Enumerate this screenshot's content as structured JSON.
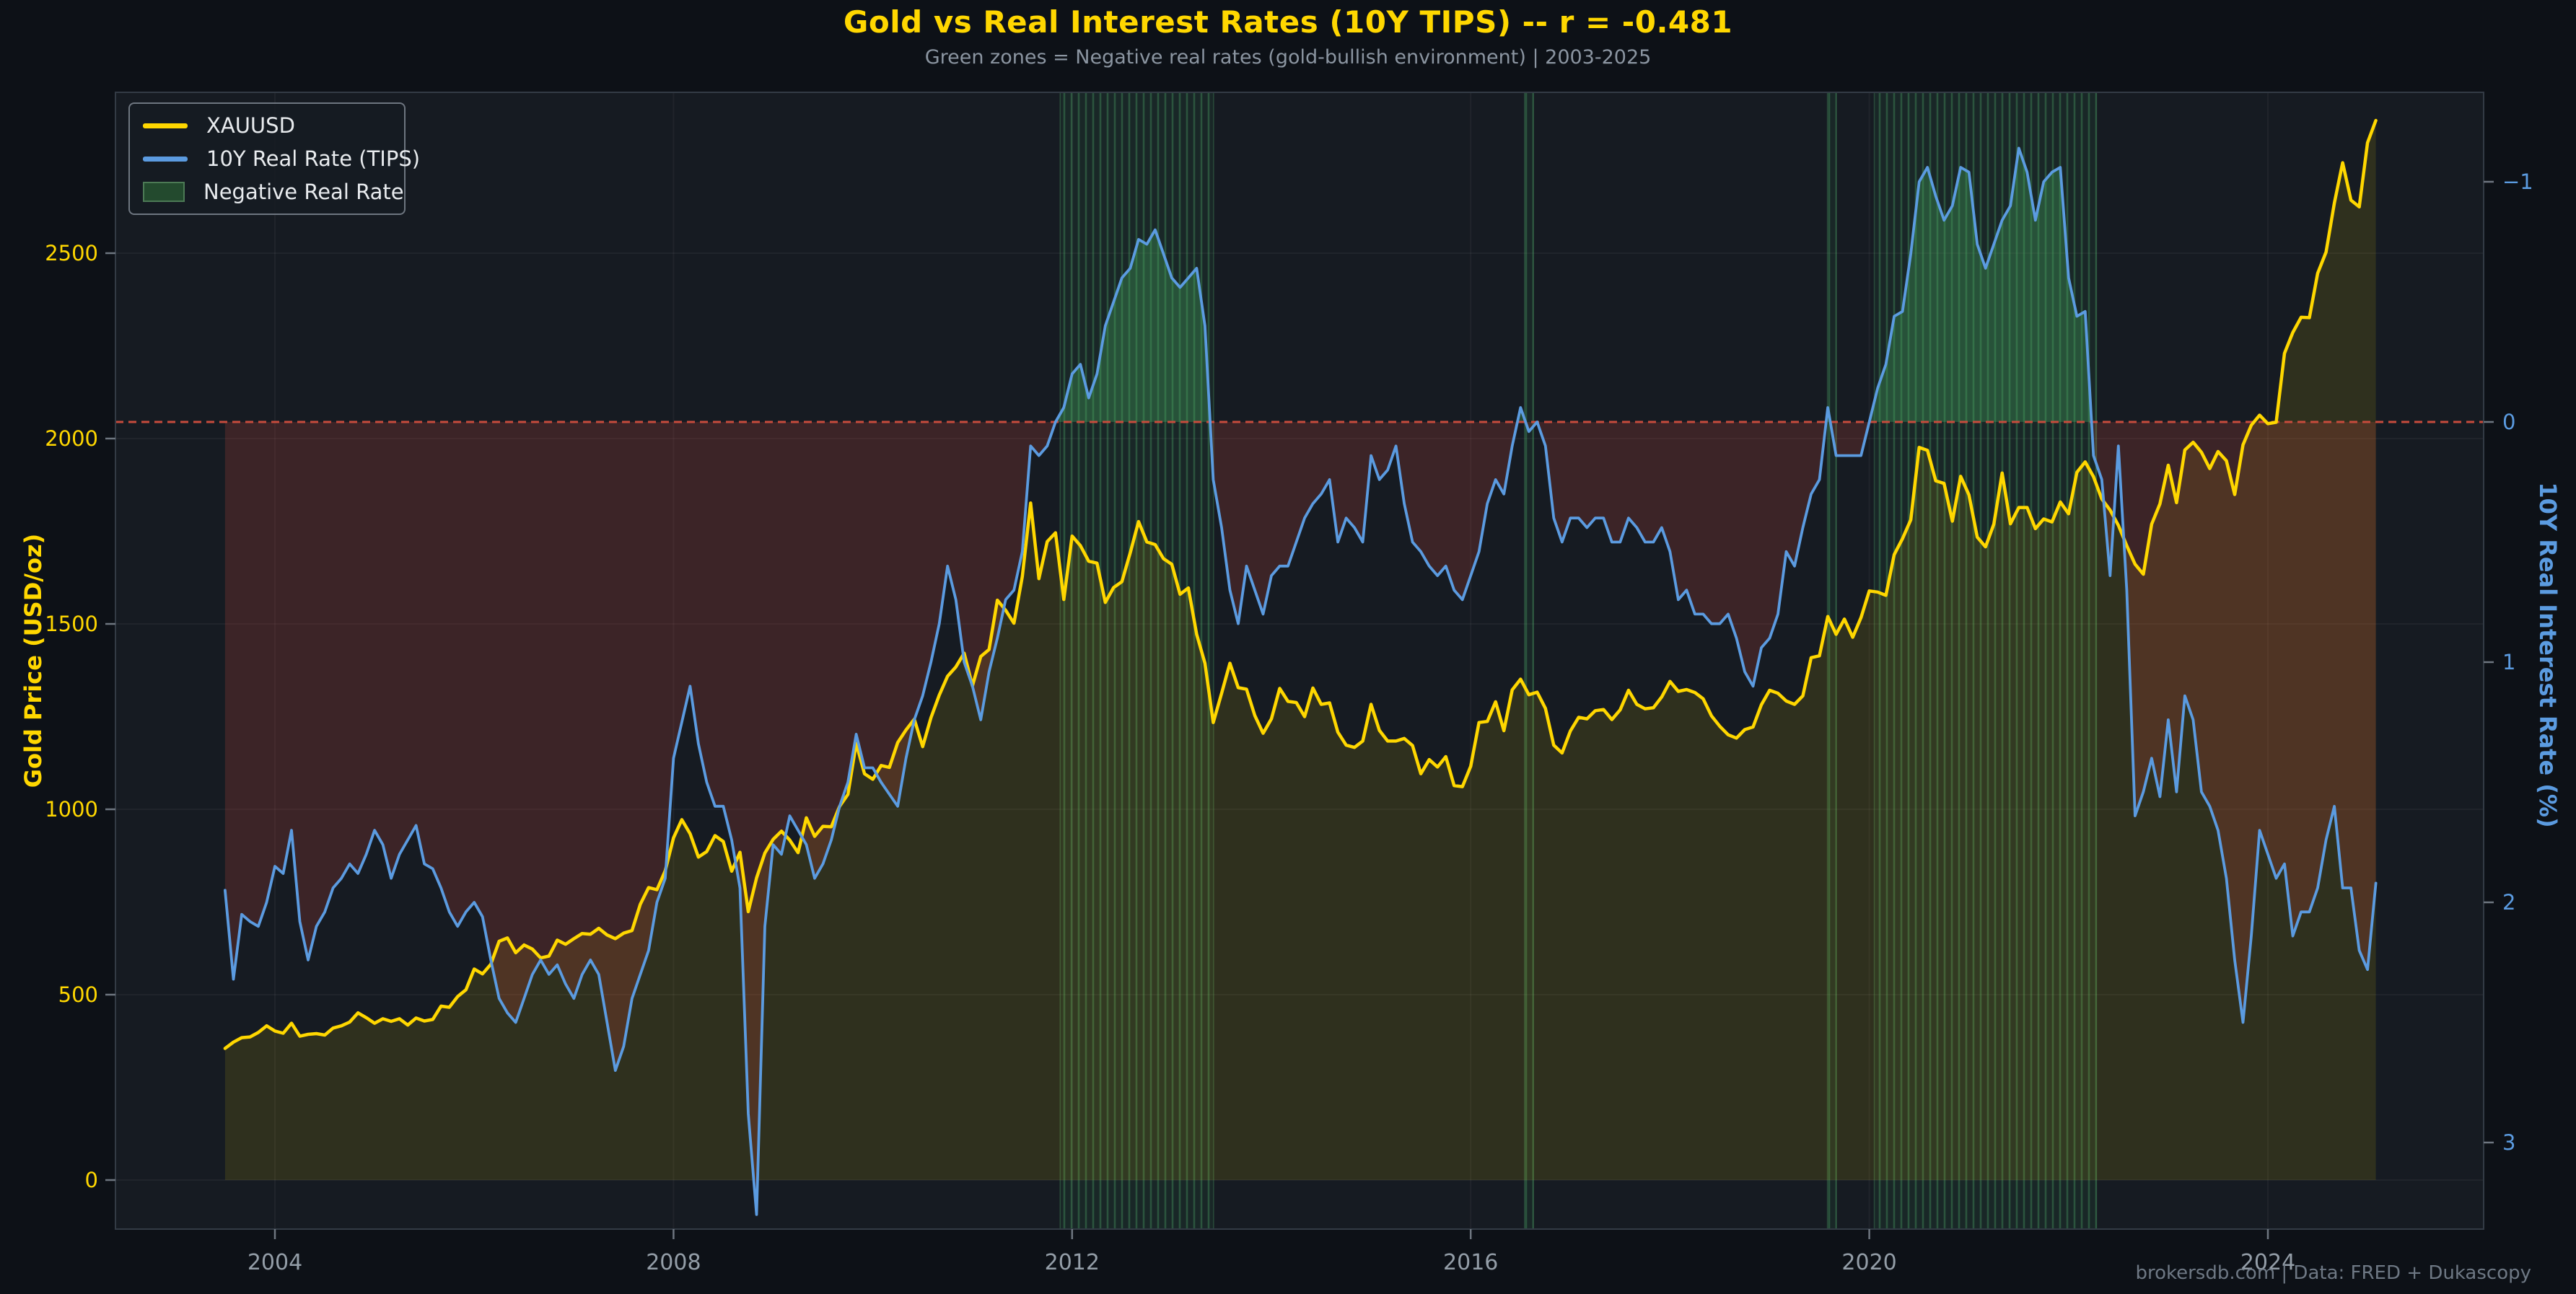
{
  "header": {
    "title": "Gold vs Real Interest Rates (10Y TIPS) -- r = -0.481",
    "subtitle": "Green zones = Negative real rates (gold-bullish environment)  |  2003-2025"
  },
  "footer": {
    "credit": "brokersdb.com  |  Data: FRED + Dukascopy"
  },
  "colors": {
    "figure_bg": "#0d1117",
    "plot_bg": "#161b22",
    "gold": "#FFD700",
    "blue": "#5b9be0",
    "zero_line_red": "#c74b3c",
    "band_green_edge": "rgba(95,200,125,0.25)",
    "band_green_fill": "rgba(56,150,86,0.10)",
    "band_green_hatch": "rgba(90,200,120,0.28)",
    "fill_negative_green": "rgba(70,175,95,0.32)",
    "fill_positive_maroon": "rgba(195,70,60,0.22)",
    "fill_gold_area": "rgba(255,215,0,0.11)",
    "tick_mark": "#6e7680",
    "x_tick_label": "#949ea8",
    "grid": "rgba(255,255,255,0.045)",
    "spine": "#333b45"
  },
  "legend": {
    "items": [
      {
        "label": "XAUUSD",
        "swatch": "line",
        "color": "#FFD700"
      },
      {
        "label": "10Y Real Rate (TIPS)",
        "swatch": "line",
        "color": "#5b9be0"
      },
      {
        "label": "Negative Real Rate",
        "swatch": "patch",
        "color": "#234a2e"
      }
    ]
  },
  "axes": {
    "left": {
      "label": "Gold Price (USD/oz)",
      "ticks": [
        "0",
        "500",
        "1000",
        "1500",
        "2000",
        "2500"
      ],
      "tick_values": [
        0,
        500,
        1000,
        1500,
        2000,
        2500
      ],
      "color": "#FFD700"
    },
    "right": {
      "label": "10Y Real Interest Rate (%)",
      "ticks": [
        "−1",
        "0",
        "1",
        "2",
        "3"
      ],
      "tick_values": [
        -1,
        0,
        1,
        2,
        3
      ],
      "color": "#5b9be0",
      "inverted": true
    },
    "x": {
      "ticks": [
        "2004",
        "2008",
        "2012",
        "2016",
        "2020",
        "2024"
      ],
      "tick_values": [
        2004,
        2008,
        2012,
        2016,
        2020,
        2024
      ]
    }
  },
  "chart_data": {
    "type": "line",
    "title": "Gold vs Real Interest Rates (10Y TIPS) -- r = -0.481",
    "correlation_r": -0.481,
    "frequency": "monthly",
    "start": {
      "year": 2003,
      "month": 7
    },
    "end": {
      "year": 2025,
      "month": 2
    },
    "xlabel": "",
    "ylabel_left": "Gold Price (USD/oz)",
    "ylabel_right": "10Y Real Interest Rate (%)",
    "xlim": [
      2002.4,
      2026.2
    ],
    "ylim_left": [
      -132,
      2934
    ],
    "ylim_right": [
      3.36,
      -1.37
    ],
    "right_axis_inverted": true,
    "zero_line": {
      "value": 0,
      "axis": "right",
      "style": "dashed",
      "color": "#c74b3c"
    },
    "negative_rate_zones": [
      {
        "from": 2011.88,
        "to": 2013.42
      },
      {
        "from": 2016.54,
        "to": 2016.63
      },
      {
        "from": 2019.58,
        "to": 2019.67
      },
      {
        "from": 2020.05,
        "to": 2022.28
      }
    ],
    "series": [
      {
        "name": "XAUUSD",
        "axis": "left",
        "color": "#FFD700",
        "values": [
          355,
          372,
          384,
          386,
          398,
          416,
          402,
          396,
          423,
          388,
          393,
          395,
          391,
          410,
          416,
          426,
          451,
          438,
          423,
          435,
          428,
          435,
          418,
          437,
          429,
          433,
          469,
          466,
          495,
          513,
          569,
          556,
          582,
          644,
          653,
          613,
          634,
          623,
          599,
          604,
          647,
          636,
          651,
          665,
          663,
          679,
          661,
          651,
          666,
          673,
          744,
          789,
          783,
          834,
          923,
          972,
          934,
          871,
          886,
          929,
          913,
          833,
          884,
          724,
          815,
          882,
          919,
          941,
          917,
          883,
          977,
          927,
          954,
          953,
          1008,
          1040,
          1178,
          1096,
          1081,
          1118,
          1113,
          1180,
          1214,
          1243,
          1169,
          1247,
          1308,
          1359,
          1384,
          1421,
          1333,
          1412,
          1431,
          1564,
          1537,
          1502,
          1628,
          1826,
          1622,
          1722,
          1746,
          1566,
          1737,
          1711,
          1669,
          1664,
          1558,
          1598,
          1614,
          1692,
          1776,
          1721,
          1714,
          1676,
          1661,
          1580,
          1597,
          1472,
          1394,
          1234,
          1313,
          1394,
          1328,
          1324,
          1253,
          1205,
          1244,
          1326,
          1291,
          1288,
          1250,
          1327,
          1283,
          1287,
          1208,
          1173,
          1167,
          1184,
          1283,
          1213,
          1184,
          1184,
          1191,
          1172,
          1096,
          1134,
          1114,
          1142,
          1064,
          1061,
          1116,
          1234,
          1237,
          1290,
          1212,
          1322,
          1351,
          1309,
          1316,
          1272,
          1173,
          1152,
          1211,
          1248,
          1244,
          1266,
          1269,
          1242,
          1268,
          1321,
          1283,
          1271,
          1274,
          1303,
          1345,
          1318,
          1323,
          1315,
          1298,
          1252,
          1224,
          1201,
          1192,
          1215,
          1222,
          1282,
          1321,
          1313,
          1292,
          1283,
          1306,
          1409,
          1414,
          1520,
          1472,
          1513,
          1464,
          1517,
          1589,
          1586,
          1577,
          1687,
          1730,
          1781,
          1976,
          1968,
          1886,
          1879,
          1777,
          1898,
          1848,
          1734,
          1708,
          1769,
          1907,
          1770,
          1814,
          1814,
          1757,
          1783,
          1775,
          1829,
          1797,
          1909,
          1937,
          1897,
          1837,
          1807,
          1766,
          1711,
          1661,
          1634,
          1769,
          1824,
          1928,
          1827,
          1969,
          1990,
          1963,
          1919,
          1965,
          1940,
          1849,
          1983,
          2036,
          2063,
          2040,
          2044,
          2230,
          2286,
          2327,
          2326,
          2446,
          2503,
          2635,
          2744,
          2643,
          2625,
          2798,
          2858
        ]
      },
      {
        "name": "10Y Real Rate (TIPS)",
        "axis": "right",
        "color": "#5b9be0",
        "values": [
          1.95,
          2.32,
          2.05,
          2.08,
          2.1,
          2.0,
          1.85,
          1.88,
          1.7,
          2.08,
          2.24,
          2.1,
          2.04,
          1.94,
          1.9,
          1.84,
          1.88,
          1.8,
          1.7,
          1.76,
          1.9,
          1.8,
          1.74,
          1.68,
          1.84,
          1.86,
          1.94,
          2.04,
          2.1,
          2.04,
          2.0,
          2.06,
          2.24,
          2.4,
          2.46,
          2.5,
          2.4,
          2.3,
          2.24,
          2.3,
          2.26,
          2.34,
          2.4,
          2.3,
          2.24,
          2.3,
          2.5,
          2.7,
          2.6,
          2.4,
          2.3,
          2.2,
          2.0,
          1.9,
          1.4,
          1.25,
          1.1,
          1.34,
          1.5,
          1.6,
          1.6,
          1.74,
          1.94,
          2.88,
          3.3,
          2.1,
          1.76,
          1.8,
          1.64,
          1.7,
          1.76,
          1.9,
          1.84,
          1.74,
          1.6,
          1.5,
          1.3,
          1.44,
          1.44,
          1.5,
          1.55,
          1.6,
          1.4,
          1.24,
          1.14,
          1.0,
          0.84,
          0.6,
          0.74,
          1.0,
          1.1,
          1.24,
          1.04,
          0.9,
          0.74,
          0.7,
          0.54,
          0.1,
          0.14,
          0.1,
          0.0,
          -0.06,
          -0.2,
          -0.24,
          -0.1,
          -0.2,
          -0.4,
          -0.5,
          -0.6,
          -0.64,
          -0.76,
          -0.74,
          -0.8,
          -0.7,
          -0.6,
          -0.56,
          -0.6,
          -0.64,
          -0.4,
          0.24,
          0.44,
          0.7,
          0.84,
          0.6,
          0.7,
          0.8,
          0.64,
          0.6,
          0.6,
          0.5,
          0.4,
          0.34,
          0.3,
          0.24,
          0.5,
          0.4,
          0.44,
          0.5,
          0.14,
          0.24,
          0.2,
          0.1,
          0.34,
          0.5,
          0.54,
          0.6,
          0.64,
          0.6,
          0.7,
          0.74,
          0.64,
          0.54,
          0.34,
          0.24,
          0.3,
          0.1,
          -0.06,
          0.04,
          0.0,
          0.1,
          0.4,
          0.5,
          0.4,
          0.4,
          0.44,
          0.4,
          0.4,
          0.5,
          0.5,
          0.4,
          0.44,
          0.5,
          0.5,
          0.44,
          0.54,
          0.74,
          0.7,
          0.8,
          0.8,
          0.84,
          0.84,
          0.8,
          0.9,
          1.04,
          1.1,
          0.94,
          0.9,
          0.8,
          0.54,
          0.6,
          0.44,
          0.3,
          0.24,
          -0.06,
          0.14,
          0.14,
          0.14,
          0.14,
          0.0,
          -0.14,
          -0.24,
          -0.44,
          -0.46,
          -0.7,
          -1.0,
          -1.06,
          -0.94,
          -0.84,
          -0.9,
          -1.06,
          -1.04,
          -0.74,
          -0.64,
          -0.74,
          -0.84,
          -0.9,
          -1.14,
          -1.04,
          -0.84,
          -1.0,
          -1.04,
          -1.06,
          -0.6,
          -0.44,
          -0.46,
          0.14,
          0.24,
          0.64,
          0.1,
          0.7,
          1.64,
          1.54,
          1.4,
          1.56,
          1.24,
          1.54,
          1.14,
          1.24,
          1.54,
          1.6,
          1.7,
          1.9,
          2.24,
          2.5,
          2.14,
          1.7,
          1.8,
          1.9,
          1.84,
          2.14,
          2.04,
          2.04,
          1.94,
          1.74,
          1.6,
          1.94,
          1.94,
          2.2,
          2.28,
          1.92
        ]
      }
    ],
    "legend_position": "upper left",
    "grid": "faint major gridlines"
  }
}
